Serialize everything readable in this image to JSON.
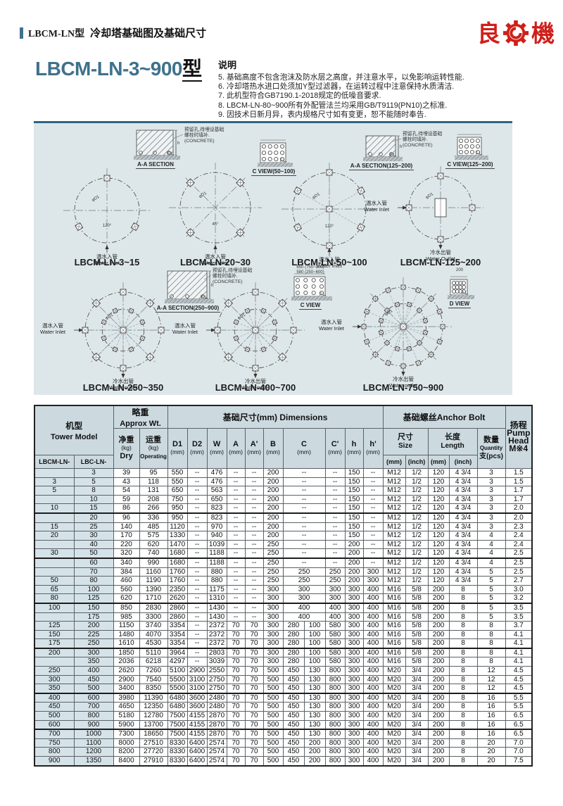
{
  "header": {
    "series": "LBCM-LN型",
    "subtitle": "冷却塔基础图及基础尺寸",
    "logo_left": "良",
    "logo_right": "機"
  },
  "title": {
    "model_range": "LBCM-LN-3~900",
    "suffix": "型"
  },
  "notes": {
    "heading": "说明",
    "items": [
      "5. 基础高度不包含泡沫及防水层之高度，并注意水平，以免影响运转性能.",
      "6. 冷却塔热水进口处须加Y型过滤器，在运转过程中注意保持水质清洁.",
      "7. 此机型符合GB7190.1-2018规定的低噪音要求.",
      "8. LBCM-LN-80~900所有外配管法兰均采用GB/T9119(PN10)之标准.",
      "9. 因技术日新月异，表内规格尺寸如有变更，恕不能随时奉告."
    ]
  },
  "colors": {
    "accent": "#3f718c",
    "logo_red": "#d01f1a",
    "panel_bg": "#dde7ea",
    "panel_border": "#2b6780",
    "table_header_bg": "#ccdae0",
    "model_col_bg": "#d5e3e9"
  },
  "diagrams": {
    "concrete_note": [
      "预留孔,待埋设基础",
      "螺栓时填补.",
      "(CONCRETE)"
    ],
    "views": [
      {
        "label": "A-A SECTION"
      },
      {
        "label": "C VIEW(50~100)"
      },
      {
        "label": "A-A SECTION(125~200)"
      },
      {
        "label": "C VIEW(125~200)"
      },
      {
        "label": "A-A SECTION(250~900)"
      },
      {
        "label": "C VIEW",
        "sub1": "650 (750~900)",
        "sub2": "580 (250~600)"
      },
      {
        "label": "D VIEW",
        "sub1": "200"
      }
    ],
    "fl_label": "F.L.",
    "models": [
      {
        "caption": "LBCM-LN-3~15",
        "inlet_cn": "温水入管",
        "inlet_en": "Water Inlet",
        "inlet_pos": "bottom",
        "angle": "120°",
        "dia_label": "φD1"
      },
      {
        "caption": "LBCM-LN-20~30",
        "inlet_cn": "温水入管",
        "inlet_en": "Water Inlet",
        "inlet_pos": "bottom",
        "angle": "45°",
        "dia_label": "φD1"
      },
      {
        "caption": "LBCM-LN-50~100",
        "inlet_cn": "温水入管",
        "inlet_en": "Water Inlet",
        "inlet_pos": "bottom",
        "angle": "120°",
        "dia_label": "φD1"
      },
      {
        "caption": "LBCM-LN-125~200",
        "inlet_cn": "温水入管",
        "inlet_en": "Water Inlet",
        "inlet_pos": "left",
        "outlet_cn": "冷水出管",
        "outlet_en": "Water Outlet",
        "dia_label": "φD1"
      },
      {
        "caption": "LBCM-LN-250~350",
        "inlet_cn": "温水入管",
        "inlet_en": "Water Inlet",
        "inlet_pos": "left",
        "outlet_cn": "冷水出管",
        "outlet_en": "Water outlet",
        "dia_label": "φD1"
      },
      {
        "caption": "LBCM-LN-400~700",
        "inlet_cn": "温水入管",
        "inlet_en": "Water Inlet",
        "inlet_pos": "left",
        "outlet_cn": "冷水出管",
        "outlet_en": "Water outlet",
        "dia_label": "φD1"
      },
      {
        "caption": "LBCM-LN-750~900",
        "inlet_cn": "温水入管",
        "inlet_en": "Water Inlet",
        "inlet_pos": "left",
        "outlet_cn": "冷水出管",
        "outlet_en": "Water outlet",
        "dia_label": "φD1"
      }
    ]
  },
  "table": {
    "headers": {
      "model_cn": "机型",
      "model_en": "Tower Model",
      "col_lbcm": "LBCM-LN-",
      "col_lbc": "LBC-LN-",
      "wt_cn": "略重",
      "wt_en": "Approx Wt.",
      "dry_cn": "净重",
      "dry_unit": "(kg)",
      "dry_en": "Dry",
      "op_cn": "运重",
      "op_unit": "(kg)",
      "op_en": "Operating",
      "dim_title": "基础尺寸(mm) Dimensions",
      "dims": [
        "D1",
        "D2",
        "W",
        "A",
        "A'",
        "B",
        "C",
        "C'",
        "h",
        "h'"
      ],
      "unit_mm": "(mm)",
      "unit_inch": "(inch)",
      "bolt_title": "基础螺丝Anchor Bolt",
      "size_cn": "尺寸",
      "size_en": "Size",
      "len_cn": "长度",
      "len_en": "Length",
      "qty_cn": "数量",
      "qty_en": "Quantity",
      "qty_unit": "支(pcs)",
      "head_cn": "扬程",
      "head_en1": "Pump",
      "head_en2": "Head",
      "head_note": "M※4"
    },
    "group_end_rows": [
      5,
      10,
      15,
      20,
      25,
      29
    ],
    "rows": [
      [
        "",
        "3",
        "39",
        "95",
        "550",
        "--",
        "476",
        "--",
        "--",
        "200",
        "--",
        "--",
        "150",
        "--",
        "M12",
        "1/2",
        "120",
        "4 3/4",
        "3",
        "1.5"
      ],
      [
        "3",
        "5",
        "43",
        "118",
        "550",
        "--",
        "476",
        "--",
        "--",
        "200",
        "--",
        "--",
        "150",
        "--",
        "M12",
        "1/2",
        "120",
        "4 3/4",
        "3",
        "1.5"
      ],
      [
        "5",
        "8",
        "54",
        "131",
        "650",
        "--",
        "563",
        "--",
        "--",
        "200",
        "--",
        "--",
        "150",
        "--",
        "M12",
        "1/2",
        "120",
        "4 3/4",
        "3",
        "1.7"
      ],
      [
        "",
        "10",
        "59",
        "208",
        "750",
        "--",
        "650",
        "--",
        "--",
        "200",
        "--",
        "--",
        "150",
        "--",
        "M12",
        "1/2",
        "120",
        "4 3/4",
        "3",
        "1.7"
      ],
      [
        "10",
        "15",
        "86",
        "266",
        "950",
        "--",
        "823",
        "--",
        "--",
        "200",
        "--",
        "--",
        "150",
        "--",
        "M12",
        "1/2",
        "120",
        "4 3/4",
        "3",
        "2.0"
      ],
      [
        "",
        "20",
        "96",
        "336",
        "950",
        "--",
        "823",
        "--",
        "--",
        "200",
        "--",
        "--",
        "150",
        "--",
        "M12",
        "1/2",
        "120",
        "4 3/4",
        "3",
        "2.0"
      ],
      [
        "15",
        "25",
        "140",
        "485",
        "1120",
        "--",
        "970",
        "--",
        "--",
        "200",
        "--",
        "--",
        "150",
        "--",
        "M12",
        "1/2",
        "120",
        "4 3/4",
        "3",
        "2.3"
      ],
      [
        "20",
        "30",
        "170",
        "575",
        "1330",
        "--",
        "940",
        "--",
        "--",
        "200",
        "--",
        "--",
        "150",
        "--",
        "M12",
        "1/2",
        "120",
        "4 3/4",
        "4",
        "2.4"
      ],
      [
        "",
        "40",
        "220",
        "620",
        "1470",
        "--",
        "1039",
        "--",
        "--",
        "250",
        "--",
        "--",
        "200",
        "--",
        "M12",
        "1/2",
        "120",
        "4 3/4",
        "4",
        "2.4"
      ],
      [
        "30",
        "50",
        "320",
        "740",
        "1680",
        "--",
        "1188",
        "--",
        "--",
        "250",
        "--",
        "--",
        "200",
        "--",
        "M12",
        "1/2",
        "120",
        "4 3/4",
        "4",
        "2.5"
      ],
      [
        "",
        "60",
        "340",
        "990",
        "1680",
        "--",
        "1188",
        "--",
        "--",
        "250",
        "--",
        "--",
        "200",
        "--",
        "M12",
        "1/2",
        "120",
        "4 3/4",
        "4",
        "2.5"
      ],
      [
        "",
        "70",
        "384",
        "1160",
        "1760",
        "--",
        "880",
        "--",
        "--",
        "250",
        "250",
        "250",
        "200",
        "300",
        "M12",
        "1/2",
        "120",
        "4 3/4",
        "5",
        "2.5"
      ],
      [
        "50",
        "80",
        "460",
        "1190",
        "1760",
        "--",
        "880",
        "--",
        "--",
        "250",
        "250",
        "250",
        "200",
        "300",
        "M12",
        "1/2",
        "120",
        "4 3/4",
        "5",
        "2.7"
      ],
      [
        "65",
        "100",
        "560",
        "1390",
        "2350",
        "--",
        "1175",
        "--",
        "--",
        "300",
        "300",
        "300",
        "300",
        "400",
        "M16",
        "5/8",
        "200",
        "8",
        "5",
        "3.0"
      ],
      [
        "80",
        "125",
        "620",
        "1710",
        "2620",
        "--",
        "1310",
        "--",
        "--",
        "300",
        "300",
        "300",
        "300",
        "400",
        "M16",
        "5/8",
        "200",
        "8",
        "5",
        "3.2"
      ],
      [
        "100",
        "150",
        "850",
        "2830",
        "2860",
        "--",
        "1430",
        "--",
        "--",
        "300",
        "400",
        "400",
        "300",
        "400",
        "M16",
        "5/8",
        "200",
        "8",
        "5",
        "3.5"
      ],
      [
        "",
        "175",
        "985",
        "3300",
        "2860",
        "--",
        "1430",
        "--",
        "--",
        "300",
        "400",
        "400",
        "300",
        "400",
        "M16",
        "5/8",
        "200",
        "8",
        "5",
        "3.5"
      ],
      [
        "125",
        "200",
        "1150",
        "3740",
        "3354",
        "--",
        "2372",
        "70",
        "70",
        "300",
        "280|100",
        "580",
        "300",
        "400",
        "M16",
        "5/8",
        "200",
        "8",
        "8",
        "3.7"
      ],
      [
        "150",
        "225",
        "1480",
        "4070",
        "3354",
        "--",
        "2372",
        "70",
        "70",
        "300",
        "280|100",
        "580",
        "300",
        "400",
        "M16",
        "5/8",
        "200",
        "8",
        "8",
        "4.1"
      ],
      [
        "175",
        "250",
        "1610",
        "4530",
        "3354",
        "--",
        "2372",
        "70",
        "70",
        "300",
        "280|100",
        "580",
        "300",
        "400",
        "M16",
        "5/8",
        "200",
        "8",
        "8",
        "4.1"
      ],
      [
        "200",
        "300",
        "1850",
        "5110",
        "3964",
        "--",
        "2803",
        "70",
        "70",
        "300",
        "280|100",
        "580",
        "300",
        "400",
        "M16",
        "5/8",
        "200",
        "8",
        "8",
        "4.1"
      ],
      [
        "",
        "350",
        "2036",
        "6218",
        "4297",
        "--",
        "3039",
        "70",
        "70",
        "300",
        "280|100",
        "580",
        "300",
        "400",
        "M16",
        "5/8",
        "200",
        "8",
        "8",
        "4.1"
      ],
      [
        "250",
        "400",
        "2620",
        "7260",
        "5100",
        "2900",
        "2550",
        "70",
        "70",
        "500",
        "450|130",
        "800",
        "300",
        "400",
        "M20",
        "3/4",
        "200",
        "8",
        "12",
        "4.5"
      ],
      [
        "300",
        "450",
        "2900",
        "7540",
        "5500",
        "3100",
        "2750",
        "70",
        "70",
        "500",
        "450|130",
        "800",
        "300",
        "400",
        "M20",
        "3/4",
        "200",
        "8",
        "12",
        "4.5"
      ],
      [
        "350",
        "500",
        "3400",
        "8350",
        "5500",
        "3100",
        "2750",
        "70",
        "70",
        "500",
        "450|130",
        "800",
        "300",
        "400",
        "M20",
        "3/4",
        "200",
        "8",
        "12",
        "4.5"
      ],
      [
        "400",
        "600",
        "3980",
        "11390",
        "6480",
        "3600",
        "2480",
        "70",
        "70",
        "500",
        "450|130",
        "800",
        "300",
        "400",
        "M20",
        "3/4",
        "200",
        "8",
        "16",
        "5.5"
      ],
      [
        "450",
        "700",
        "4650",
        "12350",
        "6480",
        "3600",
        "2480",
        "70",
        "70",
        "500",
        "450|130",
        "800",
        "300",
        "400",
        "M20",
        "3/4",
        "200",
        "8",
        "16",
        "5.5"
      ],
      [
        "500",
        "800",
        "5180",
        "12780",
        "7500",
        "4155",
        "2870",
        "70",
        "70",
        "500",
        "450|130",
        "800",
        "300",
        "400",
        "M20",
        "3/4",
        "200",
        "8",
        "16",
        "6.5"
      ],
      [
        "600",
        "900",
        "5900",
        "13700",
        "7500",
        "4155",
        "2870",
        "70",
        "70",
        "500",
        "450|130",
        "800",
        "300",
        "400",
        "M20",
        "3/4",
        "200",
        "8",
        "16",
        "6.5"
      ],
      [
        "700",
        "1000",
        "7300",
        "18650",
        "7500",
        "4155",
        "2870",
        "70",
        "70",
        "500",
        "450|130",
        "800",
        "300",
        "400",
        "M20",
        "3/4",
        "200",
        "8",
        "16",
        "6.5"
      ],
      [
        "750",
        "1100",
        "8000",
        "27510",
        "8330",
        "6400",
        "2574",
        "70",
        "70",
        "500",
        "450|200",
        "800",
        "300",
        "400",
        "M20",
        "3/4",
        "200",
        "8",
        "20",
        "7.0"
      ],
      [
        "800",
        "1200",
        "8200",
        "27720",
        "8330",
        "6400",
        "2574",
        "70",
        "70",
        "500",
        "450|200",
        "800",
        "300",
        "400",
        "M20",
        "3/4",
        "200",
        "8",
        "20",
        "7.0"
      ],
      [
        "900",
        "1350",
        "8400",
        "27910",
        "8330",
        "6400",
        "2574",
        "70",
        "70",
        "500",
        "450|200",
        "800",
        "300",
        "400",
        "M20",
        "3/4",
        "200",
        "8",
        "20",
        "7.5"
      ]
    ]
  }
}
